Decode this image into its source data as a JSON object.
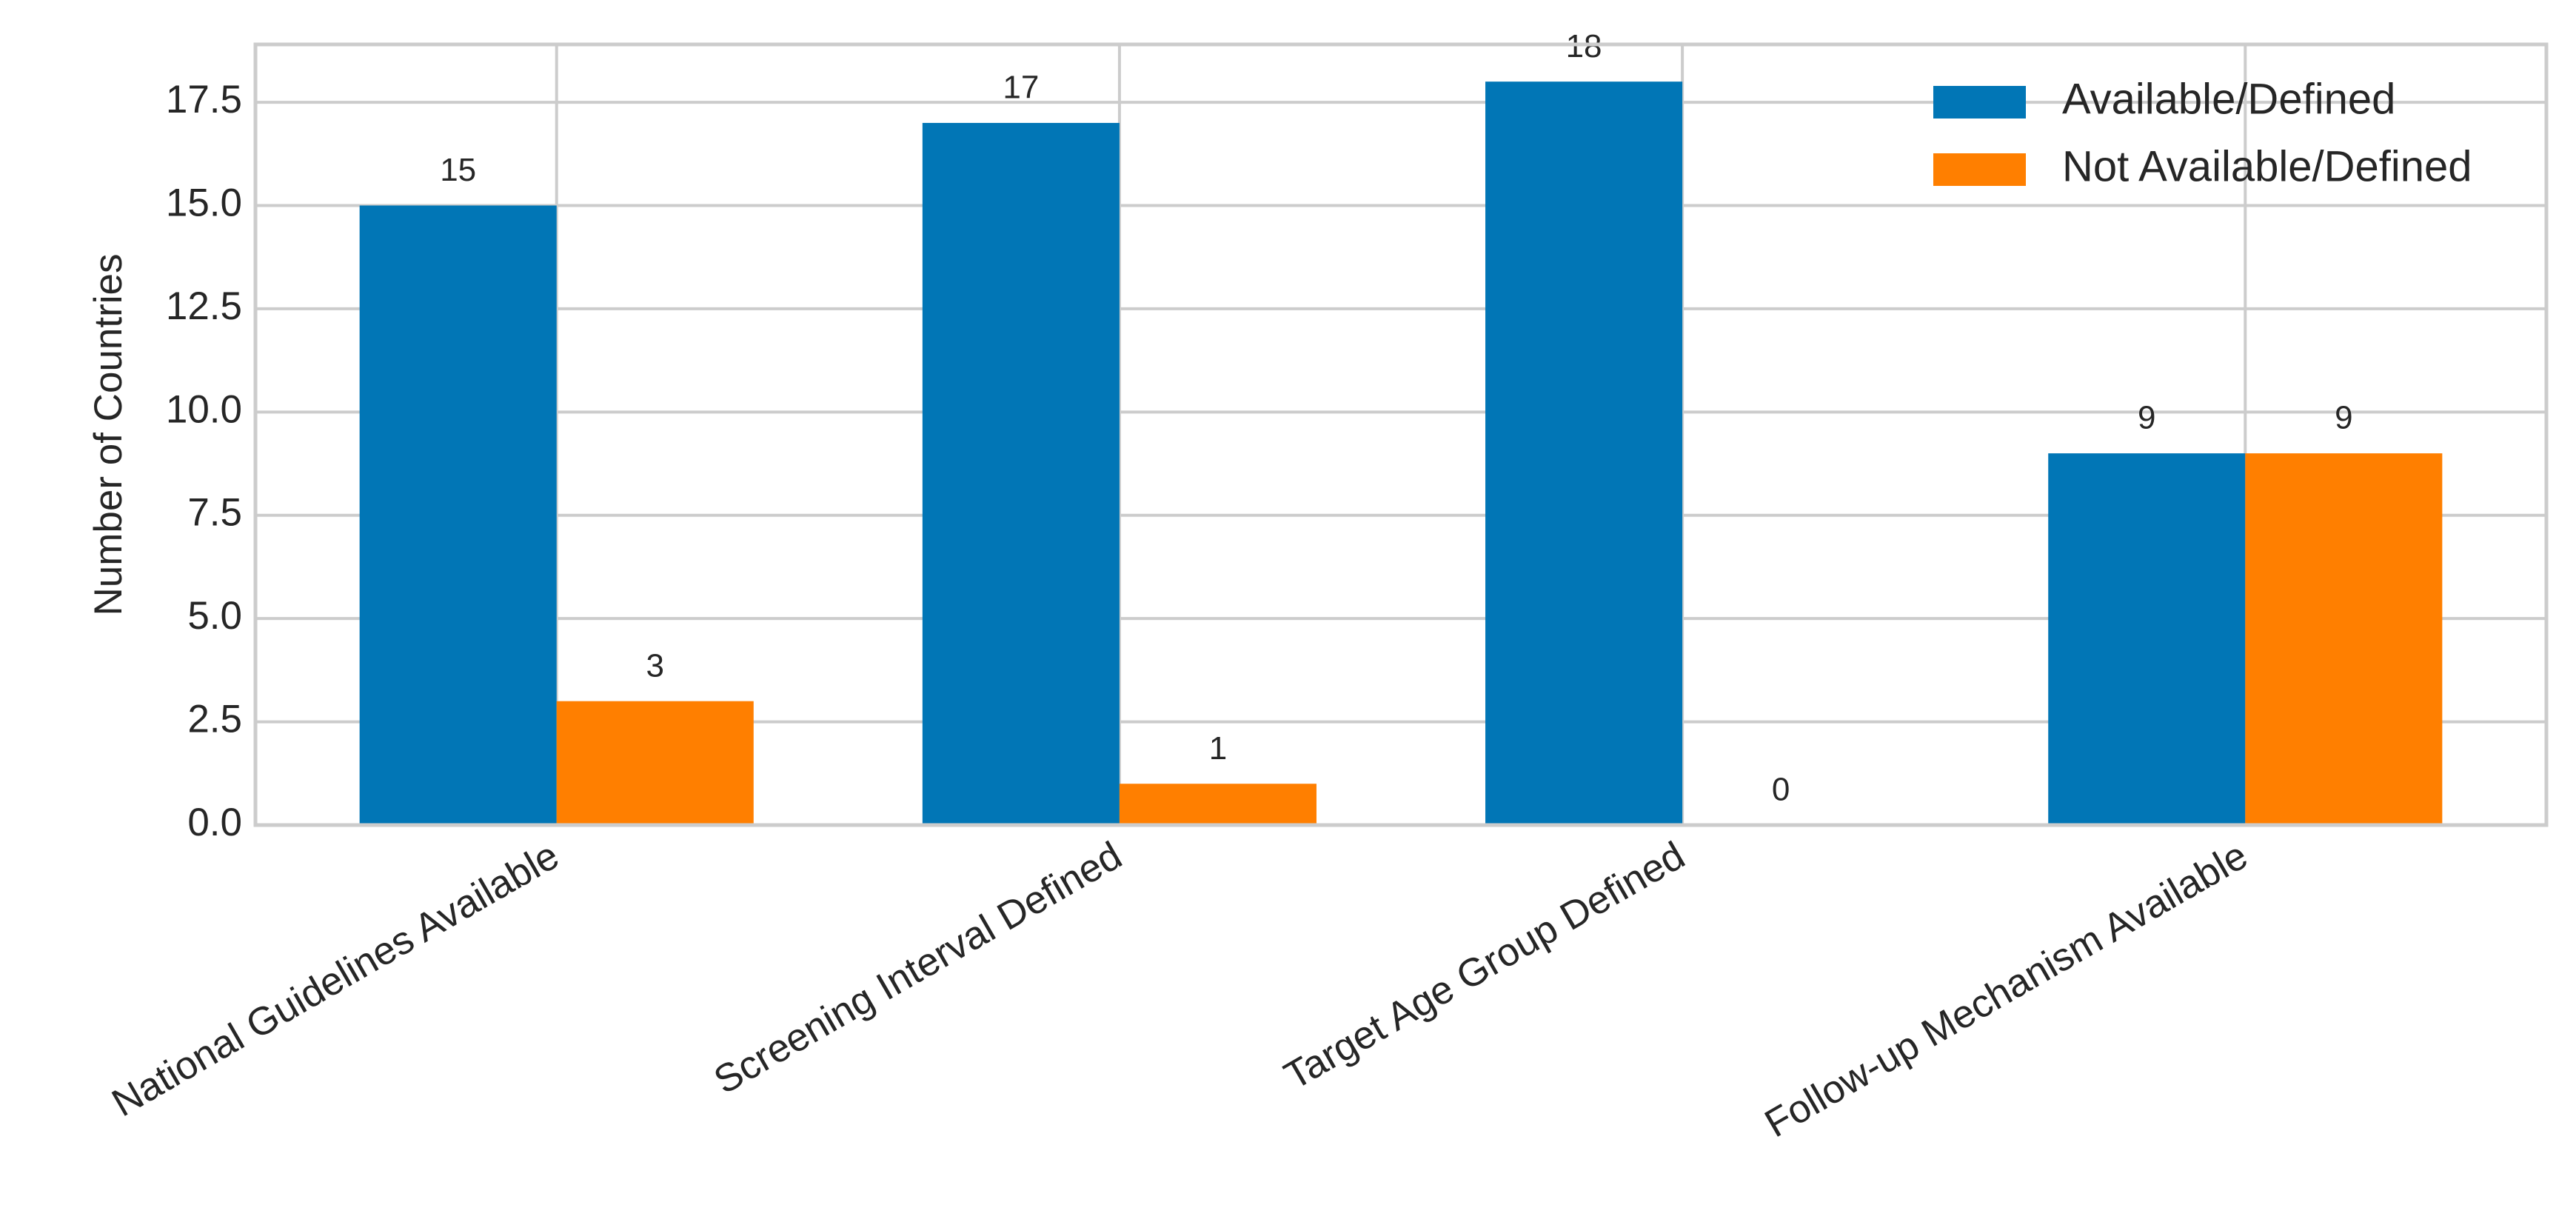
{
  "chart_data": {
    "type": "bar",
    "ylabel": "Number of Countries",
    "categories": [
      "National Guidelines Available",
      "Screening Interval Defined",
      "Target Age Group Defined",
      "Follow-up Mechanism Available"
    ],
    "series": [
      {
        "name": "Available/Defined",
        "color": "#0176b6",
        "values": [
          15,
          17,
          18,
          9
        ]
      },
      {
        "name": "Not Available/Defined",
        "color": "#ff7f00",
        "values": [
          3,
          1,
          0,
          9
        ]
      }
    ],
    "ylim": [
      0,
      18.9
    ],
    "yticks": [
      {
        "value": 0,
        "label": "0.0"
      },
      2.5,
      {
        "value": 5,
        "label": "5.0"
      },
      7.5,
      {
        "value": 10,
        "label": "10.0"
      },
      12.5,
      {
        "value": 15,
        "label": "15.0"
      },
      17.5
    ],
    "grid": true,
    "legend": "upper right"
  }
}
